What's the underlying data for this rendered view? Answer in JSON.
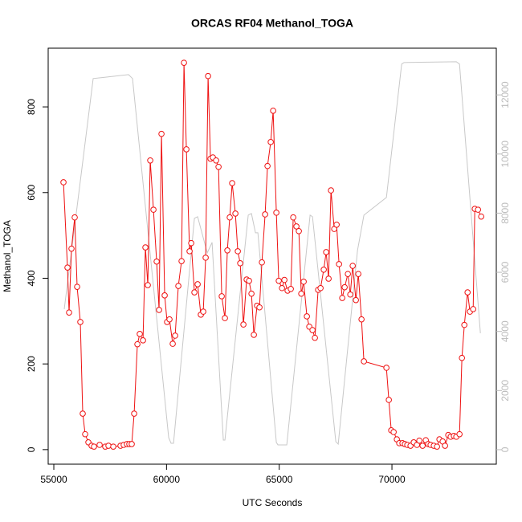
{
  "chart_data": {
    "type": "line",
    "title": "ORCAS RF04 Methanol_TOGA",
    "xlabel": "UTC Seconds",
    "ylabel": "Methanol_TOGA",
    "xlim": [
      54750,
      74630
    ],
    "ylim": [
      -34,
      937
    ],
    "y2lim": [
      -490,
      13580
    ],
    "xticks": [
      55000,
      60000,
      65000,
      70000
    ],
    "yticks": [
      0,
      200,
      400,
      600,
      800
    ],
    "y2ticks": [
      0,
      2000,
      4000,
      6000,
      8000,
      10000,
      12000
    ],
    "series": [
      {
        "color": "#ee1111",
        "markers": true,
        "x": [
          55428,
          55606,
          55677,
          55784,
          55927,
          56034,
          56176,
          56283,
          56390,
          56533,
          56675,
          56782,
          57032,
          57281,
          57424,
          57638,
          57958,
          58101,
          58243,
          58350,
          58457,
          58564,
          58707,
          58813,
          58956,
          59063,
          59170,
          59277,
          59420,
          59562,
          59669,
          59776,
          59918,
          60025,
          60132,
          60275,
          60382,
          60524,
          60667,
          60774,
          60881,
          61023,
          61095,
          61237,
          61380,
          61522,
          61629,
          61736,
          61843,
          61950,
          62057,
          62200,
          62307,
          62449,
          62591,
          62698,
          62805,
          62912,
          63055,
          63162,
          63269,
          63411,
          63554,
          63661,
          63768,
          63875,
          64017,
          64124,
          64231,
          64373,
          64480,
          64623,
          64730,
          64872,
          64979,
          65122,
          65229,
          65371,
          65514,
          65621,
          65763,
          65870,
          65977,
          66084,
          66227,
          66334,
          66476,
          66583,
          66726,
          66833,
          66975,
          67082,
          67189,
          67296,
          67439,
          67546,
          67653,
          67795,
          67902,
          68045,
          68152,
          68259,
          68401,
          68508,
          68650,
          68757,
          69755,
          69862,
          69969,
          70075,
          70218,
          70325,
          70467,
          70574,
          70682,
          70824,
          70967,
          71110,
          71216,
          71359,
          71502,
          71608,
          71715,
          71858,
          72000,
          72107,
          72250,
          72356,
          72499,
          72606,
          72749,
          72856,
          72998,
          73105,
          73212,
          73355,
          73462,
          73604,
          73676,
          73818,
          73960
        ],
        "values": [
          624,
          425,
          320,
          469,
          542,
          380,
          298,
          84,
          36,
          17,
          9,
          7,
          11,
          7,
          9,
          7,
          9,
          11,
          13,
          13,
          13,
          84,
          246,
          270,
          255,
          472,
          384,
          675,
          560,
          439,
          326,
          737,
          360,
          298,
          304,
          247,
          266,
          382,
          440,
          903,
          701,
          463,
          482,
          367,
          386,
          315,
          322,
          448,
          872,
          679,
          682,
          675,
          660,
          358,
          307,
          465,
          542,
          622,
          551,
          463,
          435,
          292,
          397,
          394,
          364,
          268,
          336,
          332,
          437,
          549,
          662,
          718,
          791,
          553,
          394,
          377,
          396,
          371,
          375,
          542,
          521,
          510,
          364,
          392,
          311,
          287,
          279,
          261,
          373,
          377,
          420,
          461,
          399,
          605,
          515,
          525,
          433,
          354,
          379,
          410,
          362,
          429,
          349,
          410,
          304,
          206,
          191,
          116,
          45,
          41,
          24,
          15,
          15,
          13,
          11,
          9,
          17,
          11,
          21,
          9,
          22,
          13,
          11,
          9,
          7,
          24,
          19,
          9,
          34,
          30,
          32,
          30,
          36,
          214,
          291,
          367,
          322,
          328,
          562,
          560,
          544
        ]
      },
      {
        "color": "#c8c8c8",
        "axis": "y2",
        "markers": false,
        "x": [
          55463,
          56746,
          58314,
          58492,
          60096,
          60203,
          60310,
          61237,
          61380,
          61807,
          62021,
          62520,
          62591,
          63625,
          63767,
          63946,
          64053,
          64872,
          64943,
          65335,
          66369,
          66476,
          67510,
          67617,
          68472,
          68757,
          69755,
          70432,
          70539,
          72856,
          72998,
          73925
        ],
        "values": [
          4755,
          12553,
          12688,
          12553,
          408,
          217,
          217,
          7825,
          7880,
          6657,
          7010,
          326,
          326,
          7934,
          7988,
          7336,
          7336,
          245,
          163,
          163,
          7934,
          7880,
          272,
          190,
          6738,
          7934,
          8531,
          13042,
          13096,
          13123,
          13042,
          3940
        ]
      }
    ]
  }
}
